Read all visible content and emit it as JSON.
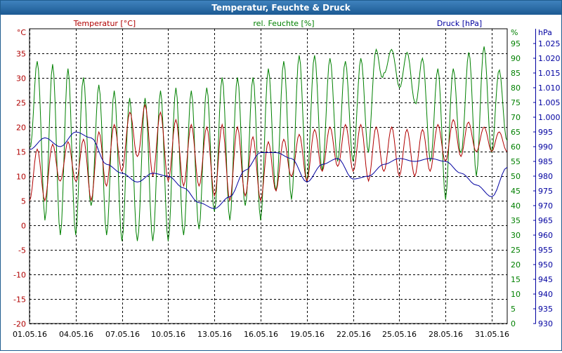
{
  "window": {
    "title": "Temperatur, Feuchte & Druck"
  },
  "chart_data": {
    "type": "line",
    "x": [
      "01.05.16",
      "02.05.16",
      "03.05.16",
      "04.05.16",
      "05.05.16",
      "06.05.16",
      "07.05.16",
      "08.05.16",
      "09.05.16",
      "10.05.16",
      "11.05.16",
      "12.05.16",
      "13.05.16",
      "14.05.16",
      "15.05.16",
      "16.05.16",
      "17.05.16",
      "18.05.16",
      "19.05.16",
      "20.05.16",
      "21.05.16",
      "22.05.16",
      "23.05.16",
      "24.05.16",
      "25.05.16",
      "26.05.16",
      "27.05.16",
      "28.05.16",
      "29.05.16",
      "30.05.16",
      "31.05.16",
      "01.06.16"
    ],
    "x_ticks": [
      "01.05.16",
      "04.05.16",
      "07.05.16",
      "10.05.16",
      "13.05.16",
      "16.05.16",
      "19.05.16",
      "22.05.16",
      "25.05.16",
      "28.05.16",
      "31.05.16"
    ],
    "grid": true,
    "axes": {
      "left": {
        "label": "°C",
        "ticks": [
          "-20",
          "-15",
          "-10",
          "-5",
          "0",
          "5",
          "10",
          "15",
          "20",
          "25",
          "30",
          "35"
        ],
        "min": -20,
        "max": 40,
        "color": "#b00000"
      },
      "right1": {
        "label": "%",
        "ticks": [
          "0",
          "5",
          "10",
          "15",
          "20",
          "25",
          "30",
          "35",
          "40",
          "45",
          "50",
          "55",
          "60",
          "65",
          "70",
          "75",
          "80",
          "85",
          "90",
          "95"
        ],
        "min": 0,
        "max": 100,
        "color": "#008000"
      },
      "right2": {
        "label": "hPa",
        "ticks": [
          "930",
          "935",
          "940",
          "945",
          "950",
          "955",
          "960",
          "965",
          "970",
          "975",
          "980",
          "985",
          "990",
          "995",
          "1.000",
          "1.005",
          "1.010",
          "1.015",
          "1.020",
          "1.025"
        ],
        "min": 930,
        "max": 1030,
        "color": "#0000a0"
      }
    },
    "series": [
      {
        "name": "Temperatur [°C]",
        "axis": "left",
        "color": "#b00000",
        "min": [
          5,
          5,
          9,
          9,
          5,
          8,
          11,
          14,
          10,
          9,
          8,
          8,
          6,
          5,
          6,
          5,
          7,
          10,
          9,
          11,
          12,
          11,
          9,
          11,
          10,
          10,
          11,
          13,
          14,
          15,
          15,
          15
        ],
        "max": [
          15,
          16,
          17,
          17,
          18,
          20,
          21,
          25,
          24,
          22,
          21,
          20,
          20,
          21,
          19,
          17,
          17,
          18,
          19,
          20,
          20,
          21,
          20,
          20,
          20,
          19,
          20,
          21,
          22,
          20,
          20,
          18
        ]
      },
      {
        "name": "rel. Feuchte [%]",
        "axis": "right1",
        "color": "#008000",
        "min": [
          60,
          35,
          30,
          30,
          40,
          30,
          28,
          28,
          28,
          28,
          30,
          32,
          38,
          35,
          40,
          35,
          45,
          42,
          48,
          52,
          55,
          55,
          58,
          85,
          80,
          75,
          55,
          42,
          58,
          50,
          58,
          62
        ],
        "max": [
          90,
          88,
          88,
          85,
          82,
          80,
          78,
          75,
          78,
          80,
          80,
          78,
          82,
          85,
          82,
          85,
          88,
          90,
          92,
          90,
          90,
          88,
          92,
          94,
          92,
          92,
          88,
          85,
          88,
          96,
          92,
          80
        ]
      },
      {
        "name": "Druck [hPa]",
        "axis": "right2",
        "color": "#0000a0",
        "values": [
          989,
          993,
          990,
          995,
          993,
          984,
          981,
          978,
          981,
          980,
          976,
          971,
          969,
          973,
          982,
          988,
          988,
          986,
          978,
          984,
          986,
          979,
          980,
          984,
          986,
          985,
          986,
          985,
          981,
          977,
          973,
          983
        ]
      }
    ]
  }
}
